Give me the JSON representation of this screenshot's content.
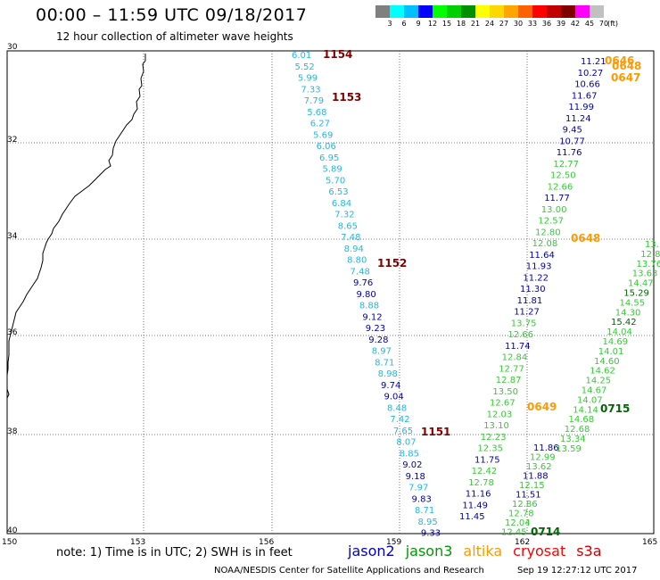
{
  "header": {
    "title": "00:00 – 11:59 UTC 09/18/2017",
    "subtitle": "12 hour collection of altimeter wave heights"
  },
  "legend": {
    "unit": "(ft)",
    "bins": [
      {
        "label": "3",
        "color": "#808080"
      },
      {
        "label": "6",
        "color": "#00ffff"
      },
      {
        "label": "9",
        "color": "#00bfff"
      },
      {
        "label": "12",
        "color": "#0000ff"
      },
      {
        "label": "15",
        "color": "#00ff00"
      },
      {
        "label": "18",
        "color": "#00d000"
      },
      {
        "label": "21",
        "color": "#009000"
      },
      {
        "label": "24",
        "color": "#ffff00"
      },
      {
        "label": "27",
        "color": "#ffd700"
      },
      {
        "label": "30",
        "color": "#ffa500"
      },
      {
        "label": "33",
        "color": "#ff6000"
      },
      {
        "label": "36",
        "color": "#ff0000"
      },
      {
        "label": "39",
        "color": "#c00000"
      },
      {
        "label": "42",
        "color": "#800000"
      },
      {
        "label": "45",
        "color": "#ff00ff"
      },
      {
        "label": "70",
        "color": "#c0c0c0"
      }
    ]
  },
  "axes": {
    "lat_labels": [
      "30",
      "32",
      "34",
      "36",
      "38",
      "40"
    ],
    "lon_labels": [
      "150",
      "153",
      "156",
      "159",
      "162",
      "165"
    ]
  },
  "colors": {
    "light_blue": "#20b8e8",
    "dark_blue": "#0000b0",
    "green": "#33cc33",
    "dark_green": "#006600",
    "orange": "#ff9900",
    "dark_red": "#800000"
  },
  "tracks": {
    "track1": {
      "values": [
        "6.01",
        "5.52",
        "5.99",
        "7.33",
        "7.79",
        "5.68",
        "6.27",
        "5.69",
        "6.06",
        "6.95",
        "5.89",
        "5.70",
        "6.53",
        "6.84",
        "7.32",
        "8.65",
        "7.48",
        "8.94",
        "8.80",
        "7.48",
        "9.76",
        "9.80",
        "8.88",
        "9.12",
        "9.23",
        "9.28",
        "8.97",
        "8.71",
        "8.98",
        "9.74",
        "9.04",
        "8.48",
        "7.42",
        "7.65",
        "8.07",
        "8.85",
        "9.02",
        "9.18",
        "7.97",
        "9.83",
        "8.71",
        "8.95",
        "9.33"
      ],
      "time_labels": [
        "1154",
        "1153",
        "1152",
        "1151"
      ]
    },
    "track2": {
      "values": [
        "11.21",
        "10.27",
        "10.66",
        "11.67",
        "11.99",
        "11.24",
        "9.45",
        "10.77",
        "11.76",
        "12.77",
        "12.50",
        "12.66",
        "11.77",
        "13.00",
        "12.57",
        "12.80",
        "12.08",
        "11.64",
        "11.93",
        "11.22",
        "11.30",
        "11.81",
        "11.27",
        "13.75",
        "12.66",
        "11.74",
        "12.84",
        "12.77",
        "12.87",
        "13.50",
        "12.67",
        "12.03",
        "13.10",
        "12.23",
        "12.35",
        "11.75",
        "12.42",
        "12.78",
        "11.16",
        "11.49",
        "11.45"
      ],
      "time_labels": [
        "0646",
        "0648",
        "0647",
        "0648",
        "0649"
      ]
    },
    "track3": {
      "values": [
        "11.86",
        "12.99",
        "13.62",
        "11.88",
        "12.15",
        "11.51",
        "12.86",
        "12.78",
        "12.04",
        "12.45"
      ],
      "time_labels": [
        "0714"
      ]
    },
    "track4": {
      "values": [
        "13.",
        "12.8",
        "13.76",
        "13.63",
        "14.47",
        "15.29",
        "14.55",
        "14.30",
        "15.42",
        "14.04",
        "14.69",
        "14.01",
        "14.60",
        "14.62",
        "14.25",
        "14.67",
        "14.07",
        "14.14",
        "14.68",
        "12.68",
        "13.34",
        "13.59"
      ],
      "time_labels": [
        "0715"
      ]
    }
  },
  "note": "note: 1) Time is in UTC; 2) SWH is in feet",
  "satellites": [
    {
      "name": "jason2",
      "color": "#0000cc"
    },
    {
      "name": "jason3",
      "color": "#009900"
    },
    {
      "name": "altika",
      "color": "#ff9900"
    },
    {
      "name": "cryosat",
      "color": "#ff0000"
    },
    {
      "name": "s3a",
      "color": "#cc0000"
    }
  ],
  "footer": {
    "source": "NOAA/NESDIS Center for Satellite Applications and Research",
    "timestamp": "Sep 19 12:27:12 UTC 2017"
  }
}
